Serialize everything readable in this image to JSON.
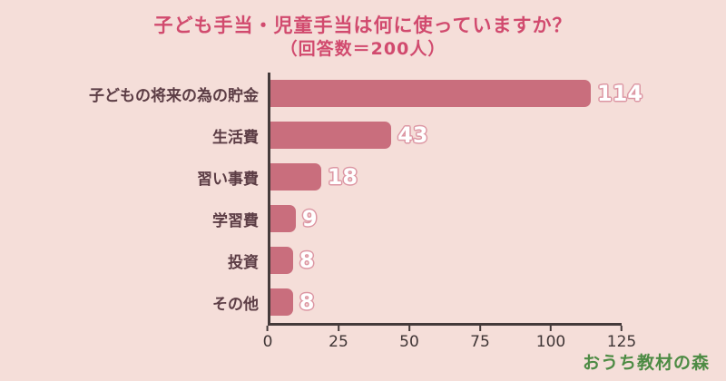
{
  "chart_data": {
    "type": "bar",
    "orientation": "horizontal",
    "title": "子ども手当・児童手当は何に使っていますか？",
    "subtitle": "（回答数＝200人）",
    "categories": [
      "子どもの将来の為の貯金",
      "生活費",
      "習い事費",
      "学習費",
      "投資",
      "その他"
    ],
    "values": [
      114,
      43,
      18,
      9,
      8,
      8
    ],
    "xlim": [
      0,
      125
    ],
    "x_ticks": [
      0,
      25,
      50,
      75,
      100,
      125
    ],
    "xlabel": "",
    "ylabel": "",
    "grid": false,
    "legend": false,
    "bar_color": "#c96e7d",
    "background_color": "#f5ded9",
    "value_label_color": "#ffffff",
    "title_color": "#d14a6e",
    "axis_color": "#443a3a"
  },
  "footer": {
    "brand": "おうち教材の森"
  }
}
